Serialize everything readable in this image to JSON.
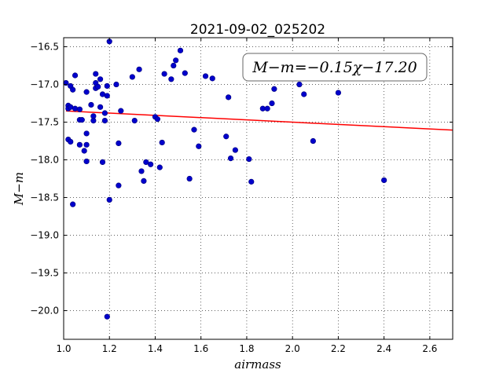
{
  "chart_data": {
    "type": "scatter",
    "title": "2021-09-02_025202",
    "xlabel": "airmass",
    "ylabel": "M−m",
    "annotation": "M−m=−0.15χ−17.20",
    "xlim": [
      1.0,
      2.7
    ],
    "ylim": [
      -20.38,
      -16.38
    ],
    "y_inverted": false,
    "grid": true,
    "xticks": [
      1.0,
      1.2,
      1.4,
      1.6,
      1.8,
      2.0,
      2.2,
      2.4,
      2.6
    ],
    "xtick_labels": [
      "1.0",
      "1.2",
      "1.4",
      "1.6",
      "1.8",
      "2.0",
      "2.2",
      "2.4",
      "2.6"
    ],
    "yticks": [
      -16.5,
      -17.0,
      -17.5,
      -18.0,
      -18.5,
      -19.0,
      -19.5,
      -20.0
    ],
    "ytick_labels": [
      "−16.5",
      "−17.0",
      "−17.5",
      "−18.0",
      "−18.5",
      "−19.0",
      "−19.5",
      "−20.0"
    ],
    "fit": {
      "slope": -0.15,
      "intercept": -17.2,
      "color": "#ff0000"
    },
    "marker_color": "#0000cc",
    "points": [
      [
        1.01,
        -16.98
      ],
      [
        1.02,
        -17.28
      ],
      [
        1.02,
        -17.32
      ],
      [
        1.03,
        -17.3
      ],
      [
        1.03,
        -17.02
      ],
      [
        1.04,
        -17.07
      ],
      [
        1.05,
        -16.88
      ],
      [
        1.05,
        -17.32
      ],
      [
        1.07,
        -17.33
      ],
      [
        1.07,
        -17.47
      ],
      [
        1.08,
        -17.47
      ],
      [
        1.04,
        -18.59
      ],
      [
        1.02,
        -17.73
      ],
      [
        1.03,
        -17.76
      ],
      [
        1.07,
        -17.8
      ],
      [
        1.09,
        -17.88
      ],
      [
        1.1,
        -17.65
      ],
      [
        1.1,
        -17.8
      ],
      [
        1.1,
        -18.02
      ],
      [
        1.1,
        -17.1
      ],
      [
        1.12,
        -17.27
      ],
      [
        1.13,
        -17.42
      ],
      [
        1.13,
        -17.48
      ],
      [
        1.14,
        -16.86
      ],
      [
        1.14,
        -16.98
      ],
      [
        1.14,
        -17.05
      ],
      [
        1.15,
        -17.03
      ],
      [
        1.16,
        -16.93
      ],
      [
        1.16,
        -17.3
      ],
      [
        1.17,
        -17.13
      ],
      [
        1.18,
        -17.38
      ],
      [
        1.18,
        -17.48
      ],
      [
        1.19,
        -17.15
      ],
      [
        1.19,
        -17.02
      ],
      [
        1.17,
        -18.03
      ],
      [
        1.2,
        -16.43
      ],
      [
        1.2,
        -18.53
      ],
      [
        1.19,
        -20.08
      ],
      [
        1.23,
        -17.0
      ],
      [
        1.24,
        -17.78
      ],
      [
        1.24,
        -18.34
      ],
      [
        1.25,
        -17.35
      ],
      [
        1.3,
        -16.9
      ],
      [
        1.31,
        -17.48
      ],
      [
        1.33,
        -16.8
      ],
      [
        1.34,
        -18.15
      ],
      [
        1.35,
        -18.28
      ],
      [
        1.36,
        -18.03
      ],
      [
        1.38,
        -18.06
      ],
      [
        1.4,
        -17.43
      ],
      [
        1.41,
        -17.46
      ],
      [
        1.42,
        -18.1
      ],
      [
        1.43,
        -17.77
      ],
      [
        1.44,
        -16.86
      ],
      [
        1.47,
        -16.93
      ],
      [
        1.48,
        -16.75
      ],
      [
        1.49,
        -16.68
      ],
      [
        1.51,
        -16.55
      ],
      [
        1.53,
        -16.85
      ],
      [
        1.55,
        -18.25
      ],
      [
        1.57,
        -17.6
      ],
      [
        1.59,
        -17.82
      ],
      [
        1.62,
        -16.89
      ],
      [
        1.65,
        -16.92
      ],
      [
        1.71,
        -17.69
      ],
      [
        1.72,
        -17.17
      ],
      [
        1.73,
        -17.98
      ],
      [
        1.75,
        -17.87
      ],
      [
        1.81,
        -17.99
      ],
      [
        1.82,
        -18.29
      ],
      [
        1.87,
        -17.32
      ],
      [
        1.89,
        -17.32
      ],
      [
        1.91,
        -17.25
      ],
      [
        1.92,
        -17.06
      ],
      [
        2.03,
        -17.0
      ],
      [
        2.05,
        -17.13
      ],
      [
        2.09,
        -17.75
      ],
      [
        2.2,
        -17.11
      ],
      [
        2.4,
        -18.27
      ]
    ]
  }
}
